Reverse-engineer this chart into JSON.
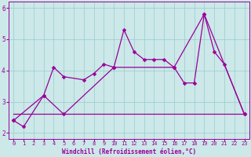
{
  "xlabel": "Windchill (Refroidissement éolien,°C)",
  "xlim": [
    -0.5,
    23.5
  ],
  "ylim": [
    1.8,
    6.2
  ],
  "yticks": [
    2,
    3,
    4,
    5,
    6
  ],
  "xticks": [
    0,
    1,
    2,
    3,
    4,
    5,
    6,
    7,
    8,
    9,
    10,
    11,
    12,
    13,
    14,
    15,
    16,
    17,
    18,
    19,
    20,
    21,
    22,
    23
  ],
  "line_color": "#990099",
  "bg_color": "#cce8e8",
  "grid_color": "#99cccc",
  "markersize": 2.5,
  "linewidth": 0.9,
  "line1_x": [
    0,
    1,
    3,
    4,
    5,
    7,
    8,
    9,
    10,
    11,
    12,
    13,
    14,
    15,
    16,
    17,
    18,
    19,
    20,
    21,
    23
  ],
  "line1_y": [
    2.4,
    2.2,
    3.2,
    4.1,
    3.8,
    3.7,
    3.9,
    4.2,
    4.1,
    5.3,
    4.6,
    4.35,
    4.35,
    4.35,
    4.1,
    3.6,
    3.6,
    5.8,
    4.6,
    4.2,
    2.6
  ],
  "line2_x": [
    0,
    23
  ],
  "line2_y": [
    2.6,
    2.6
  ],
  "line3_x": [
    0,
    3,
    5,
    10,
    16,
    19,
    23
  ],
  "line3_y": [
    2.4,
    3.2,
    2.6,
    4.1,
    4.1,
    5.8,
    2.6
  ],
  "xlabel_fontsize": 5.5,
  "tick_fontsize_x": 5.0,
  "tick_fontsize_y": 5.5
}
